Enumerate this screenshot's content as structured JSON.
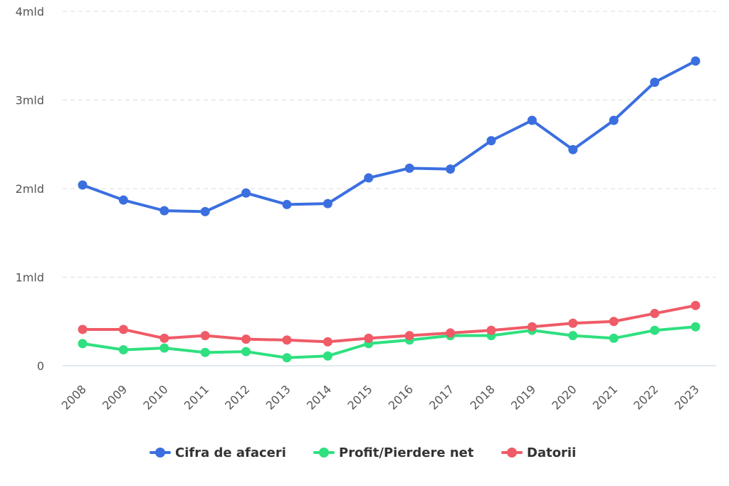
{
  "chart_data": {
    "type": "line",
    "title": "",
    "xlabel": "",
    "ylabel": "",
    "x": [
      "2008",
      "2009",
      "2010",
      "2011",
      "2012",
      "2013",
      "2014",
      "2015",
      "2016",
      "2017",
      "2018",
      "2019",
      "2020",
      "2021",
      "2022",
      "2023"
    ],
    "ylim": [
      0,
      4000000000
    ],
    "y_ticks": [
      {
        "value": 0,
        "label": "0"
      },
      {
        "value": 1000000000,
        "label": "1mld"
      },
      {
        "value": 2000000000,
        "label": "2mld"
      },
      {
        "value": 3000000000,
        "label": "3mld"
      },
      {
        "value": 4000000000,
        "label": "4mld"
      }
    ],
    "grid": "horizontal-dashed",
    "legend_position": "bottom-center",
    "series": [
      {
        "name": "Cifra de afaceri",
        "color": "#3b6fe0",
        "values": [
          2040000000,
          1870000000,
          1750000000,
          1740000000,
          1950000000,
          1820000000,
          1830000000,
          2120000000,
          2230000000,
          2220000000,
          2540000000,
          2770000000,
          2440000000,
          2770000000,
          3200000000,
          3440000000
        ]
      },
      {
        "name": "Profit/Pierdere net",
        "color": "#2ee07f",
        "values": [
          250000000,
          180000000,
          200000000,
          150000000,
          160000000,
          90000000,
          110000000,
          250000000,
          290000000,
          340000000,
          340000000,
          400000000,
          340000000,
          310000000,
          400000000,
          440000000
        ]
      },
      {
        "name": "Datorii",
        "color": "#ef5b67",
        "values": [
          410000000,
          410000000,
          310000000,
          340000000,
          300000000,
          290000000,
          270000000,
          310000000,
          340000000,
          370000000,
          400000000,
          440000000,
          480000000,
          500000000,
          590000000,
          680000000
        ]
      }
    ]
  }
}
